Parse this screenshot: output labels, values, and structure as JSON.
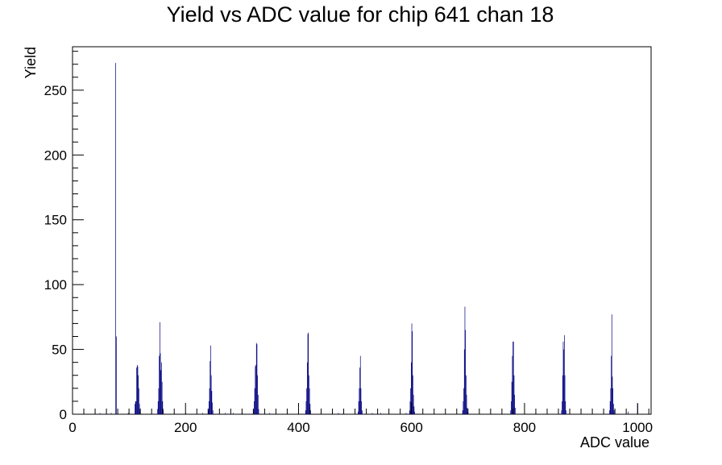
{
  "chart_data": {
    "type": "bar",
    "title": "Yield vs ADC value for chip 641 chan 18",
    "xlabel": "ADC value",
    "ylabel": "Yield",
    "xlim": [
      0,
      1024
    ],
    "ylim": [
      0,
      283.5
    ],
    "x_ticks": [
      0,
      200,
      400,
      600,
      800,
      1000
    ],
    "y_ticks": [
      0,
      50,
      100,
      150,
      200,
      250
    ],
    "bar_color": "#00007f",
    "grid": false,
    "legend": "none",
    "bins": [
      [
        48,
        1
      ],
      [
        68,
        1
      ],
      [
        76,
        271
      ],
      [
        77,
        60
      ],
      [
        98,
        1
      ],
      [
        110,
        8
      ],
      [
        111,
        10
      ],
      [
        112,
        10
      ],
      [
        113,
        36
      ],
      [
        114,
        38
      ],
      [
        115,
        37
      ],
      [
        116,
        30
      ],
      [
        117,
        20
      ],
      [
        118,
        8
      ],
      [
        119,
        3
      ],
      [
        150,
        4
      ],
      [
        151,
        10
      ],
      [
        152,
        20
      ],
      [
        153,
        45
      ],
      [
        154,
        71
      ],
      [
        155,
        47
      ],
      [
        156,
        34
      ],
      [
        157,
        40
      ],
      [
        158,
        25
      ],
      [
        159,
        10
      ],
      [
        160,
        3
      ],
      [
        200,
        1
      ],
      [
        230,
        1
      ],
      [
        240,
        3
      ],
      [
        241,
        10
      ],
      [
        242,
        20
      ],
      [
        243,
        41
      ],
      [
        244,
        53
      ],
      [
        245,
        30
      ],
      [
        246,
        18
      ],
      [
        247,
        9
      ],
      [
        248,
        3
      ],
      [
        270,
        1
      ],
      [
        284,
        1
      ],
      [
        300,
        1
      ],
      [
        320,
        3
      ],
      [
        321,
        10
      ],
      [
        322,
        20
      ],
      [
        323,
        37
      ],
      [
        324,
        38
      ],
      [
        325,
        55
      ],
      [
        326,
        54
      ],
      [
        327,
        30
      ],
      [
        328,
        15
      ],
      [
        329,
        4
      ],
      [
        348,
        1
      ],
      [
        412,
        3
      ],
      [
        413,
        10
      ],
      [
        414,
        20
      ],
      [
        415,
        40
      ],
      [
        416,
        62
      ],
      [
        417,
        63
      ],
      [
        418,
        30
      ],
      [
        419,
        20
      ],
      [
        420,
        8
      ],
      [
        421,
        3
      ],
      [
        470,
        1
      ],
      [
        505,
        2
      ],
      [
        506,
        10
      ],
      [
        507,
        20
      ],
      [
        508,
        36
      ],
      [
        509,
        45
      ],
      [
        510,
        20
      ],
      [
        511,
        10
      ],
      [
        512,
        3
      ],
      [
        530,
        1
      ],
      [
        545,
        1
      ],
      [
        590,
        1
      ],
      [
        596,
        3
      ],
      [
        597,
        10
      ],
      [
        598,
        20
      ],
      [
        599,
        40
      ],
      [
        600,
        70
      ],
      [
        601,
        64
      ],
      [
        602,
        30
      ],
      [
        603,
        15
      ],
      [
        604,
        6
      ],
      [
        605,
        2
      ],
      [
        690,
        3
      ],
      [
        691,
        10
      ],
      [
        692,
        20
      ],
      [
        693,
        50
      ],
      [
        694,
        83
      ],
      [
        695,
        65
      ],
      [
        696,
        30
      ],
      [
        697,
        15
      ],
      [
        698,
        5
      ],
      [
        699,
        2
      ],
      [
        775,
        3
      ],
      [
        776,
        10
      ],
      [
        777,
        25
      ],
      [
        778,
        45
      ],
      [
        779,
        56
      ],
      [
        780,
        56
      ],
      [
        781,
        30
      ],
      [
        782,
        15
      ],
      [
        783,
        5
      ],
      [
        865,
        3
      ],
      [
        866,
        10
      ],
      [
        867,
        30
      ],
      [
        868,
        56
      ],
      [
        869,
        50
      ],
      [
        870,
        61
      ],
      [
        871,
        30
      ],
      [
        872,
        10
      ],
      [
        873,
        3
      ],
      [
        950,
        3
      ],
      [
        951,
        10
      ],
      [
        952,
        20
      ],
      [
        953,
        45
      ],
      [
        954,
        77
      ],
      [
        955,
        29
      ],
      [
        956,
        20
      ],
      [
        957,
        8
      ],
      [
        958,
        3
      ],
      [
        983,
        2
      ],
      [
        1000,
        8
      ]
    ]
  }
}
